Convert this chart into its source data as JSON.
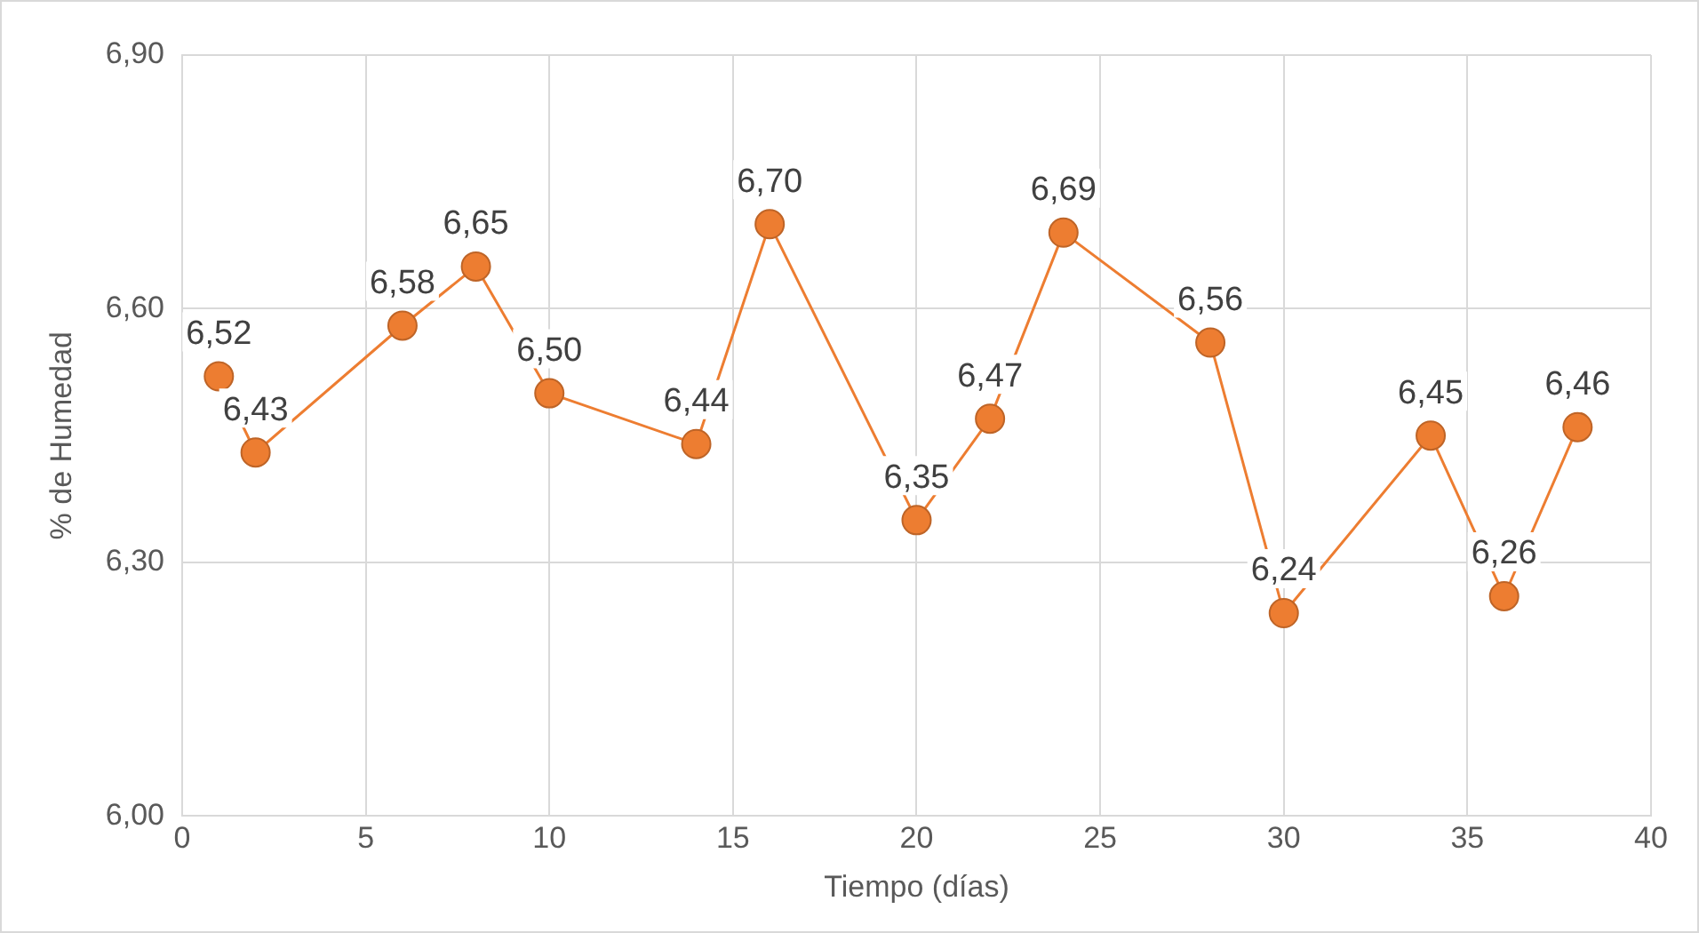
{
  "chart_data": {
    "type": "line",
    "xlabel": "Tiempo (días)",
    "ylabel": "% de Humedad",
    "x": [
      1,
      2,
      6,
      8,
      10,
      14,
      16,
      20,
      22,
      24,
      28,
      30,
      34,
      36,
      38
    ],
    "series": [
      {
        "color": "#ed7d31",
        "values": [
          6.52,
          6.43,
          6.58,
          6.65,
          6.5,
          6.44,
          6.7,
          6.35,
          6.47,
          6.69,
          6.56,
          6.24,
          6.45,
          6.26,
          6.46
        ],
        "value_labels": [
          "6,52",
          "6,43",
          "6,58",
          "6,65",
          "6,50",
          "6,44",
          "6,70",
          "6,35",
          "6,47",
          "6,69",
          "6,56",
          "6,24",
          "6,45",
          "6,26",
          "6,46"
        ]
      }
    ],
    "xlim": [
      0,
      40
    ],
    "xticks": [
      0,
      5,
      10,
      15,
      20,
      25,
      30,
      35,
      40
    ],
    "ylim": [
      6.0,
      6.9
    ],
    "yticks": [
      {
        "value": 6.0,
        "label": "6,00"
      },
      {
        "value": 6.3,
        "label": "6,30"
      },
      {
        "value": 6.6,
        "label": "6,60"
      },
      {
        "value": 6.9,
        "label": "6,90"
      }
    ],
    "grid": true,
    "marker": "circle",
    "line_style": "solid",
    "legend": false
  }
}
